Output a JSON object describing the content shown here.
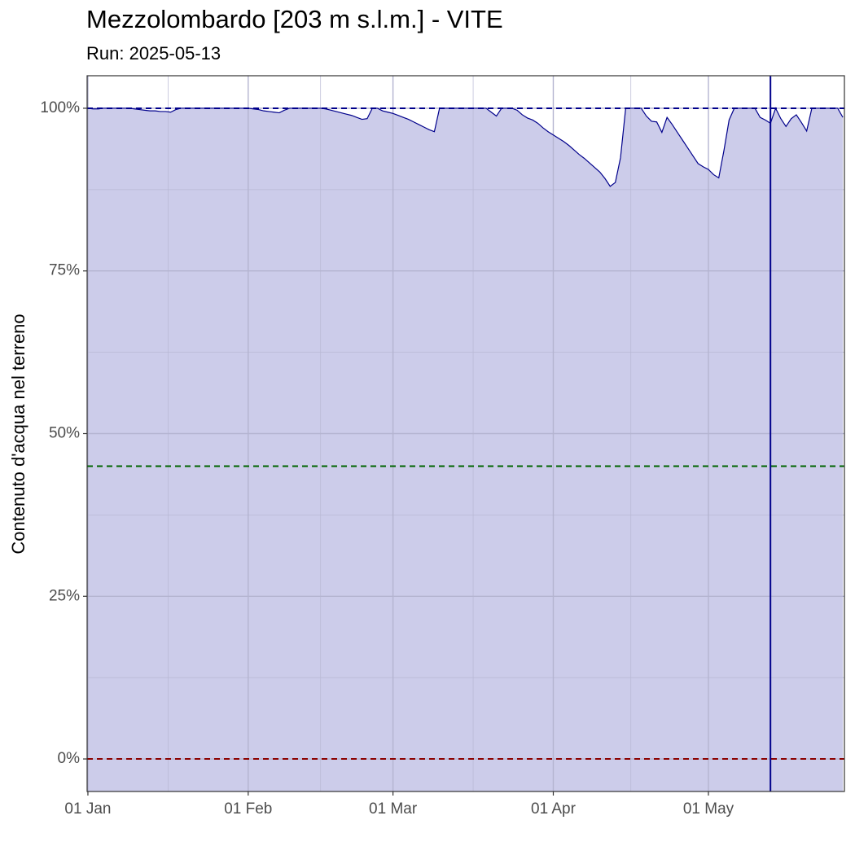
{
  "chart_data": {
    "type": "area",
    "title": "Mezzolombardo [203 m s.l.m.] - VITE",
    "subtitle": "Run: 2025-05-13",
    "y_label": "Contenuto d'acqua nel terreno",
    "x": [
      0,
      1,
      2,
      3,
      4,
      5,
      6,
      7,
      8,
      9,
      10,
      11,
      12,
      13,
      14,
      15,
      16,
      17,
      18,
      19,
      20,
      21,
      22,
      23,
      24,
      25,
      26,
      27,
      28,
      29,
      30,
      31,
      32,
      33,
      34,
      35,
      36,
      37,
      38,
      39,
      40,
      41,
      42,
      43,
      44,
      45,
      46,
      47,
      48,
      49,
      50,
      51,
      52,
      53,
      54,
      55,
      56,
      57,
      58,
      59,
      60,
      61,
      62,
      63,
      64,
      65,
      66,
      67,
      68,
      69,
      70,
      71,
      72,
      73,
      74,
      75,
      76,
      77,
      78,
      79,
      80,
      81,
      82,
      83,
      84,
      85,
      86,
      87,
      88,
      89,
      90,
      91,
      92,
      93,
      94,
      95,
      96,
      97,
      98,
      99,
      100,
      101,
      102,
      103,
      104,
      105,
      106,
      107,
      108,
      109,
      110,
      111,
      112,
      113,
      114,
      115,
      116,
      117,
      118,
      119,
      120,
      121,
      122,
      123,
      124,
      125,
      126,
      127,
      128,
      129,
      130,
      131,
      132,
      133,
      134,
      135,
      136,
      137,
      138,
      139,
      140,
      141,
      142,
      143,
      144,
      145,
      146
    ],
    "values": [
      100,
      99.9,
      99.9,
      100,
      100,
      100,
      100,
      100,
      100,
      99.9,
      99.8,
      99.7,
      99.6,
      99.6,
      99.5,
      99.5,
      99.4,
      99.8,
      100,
      100,
      100,
      100,
      100,
      100,
      100,
      100,
      100,
      100,
      100,
      100,
      100,
      100,
      99.9,
      99.8,
      99.6,
      99.5,
      99.4,
      99.3,
      99.7,
      100,
      100,
      100,
      100,
      100,
      100,
      100,
      99.9,
      99.7,
      99.5,
      99.3,
      99.1,
      98.9,
      98.6,
      98.3,
      98.4,
      100,
      100,
      99.6,
      99.4,
      99.2,
      98.9,
      98.6,
      98.3,
      97.9,
      97.5,
      97.1,
      96.7,
      96.4,
      100,
      100,
      100,
      100,
      100,
      100,
      100,
      100,
      100,
      100,
      99.4,
      98.8,
      100,
      100,
      100,
      99.7,
      99.0,
      98.5,
      98.2,
      97.7,
      97.0,
      96.4,
      95.9,
      95.4,
      94.9,
      94.3,
      93.6,
      92.9,
      92.3,
      91.6,
      90.9,
      90.2,
      89.2,
      88.0,
      88.6,
      92.4,
      100,
      100,
      100,
      100,
      98.8,
      98.0,
      97.9,
      96.3,
      98.6,
      97.5,
      96.3,
      95.1,
      93.9,
      92.7,
      91.5,
      91.0,
      90.6,
      89.8,
      89.3,
      93.5,
      98.2,
      100,
      100,
      100,
      100,
      100,
      98.6,
      98.2,
      97.7,
      100,
      98.4,
      97.2,
      98.4,
      99.0,
      97.8,
      96.5,
      100,
      100,
      100,
      100,
      100,
      100,
      98.6
    ],
    "color": "#00008b",
    "fill_color": "#ccccea",
    "xlim": [
      -0.15,
      146.3
    ],
    "xticks": [
      {
        "value": 0,
        "label": "01 Jan"
      },
      {
        "value": 31,
        "label": "01 Feb"
      },
      {
        "value": 59,
        "label": "01 Mar"
      },
      {
        "value": 90,
        "label": "01 Apr"
      },
      {
        "value": 120,
        "label": "01 May"
      }
    ],
    "ylim": [
      -5,
      105
    ],
    "yticks": [
      {
        "value": 0,
        "label": "0%"
      },
      {
        "value": 25,
        "label": "25%"
      },
      {
        "value": 50,
        "label": "50%"
      },
      {
        "value": 75,
        "label": "75%"
      },
      {
        "value": 100,
        "label": "100%"
      }
    ],
    "grid": true,
    "hlines": [
      {
        "value": 100,
        "color": "#00008b"
      },
      {
        "value": 45,
        "color": "#006400"
      },
      {
        "value": 0,
        "color": "#8b0000"
      }
    ],
    "vline": {
      "value": 132,
      "color": "#00008b"
    }
  }
}
